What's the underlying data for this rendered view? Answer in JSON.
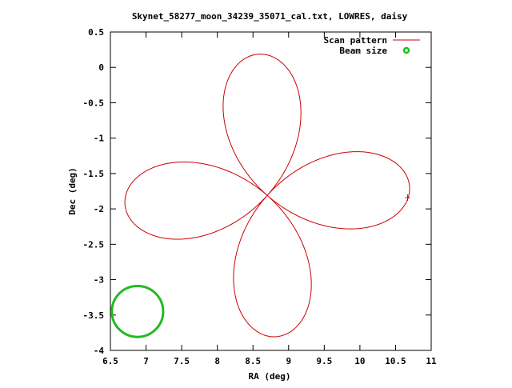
{
  "chart_data": {
    "type": "line",
    "title": "Skynet_58277_moon_34239_35071_cal.txt, LOWRES, daisy",
    "xlabel": "RA (deg)",
    "ylabel": "Dec (deg)",
    "xlim": [
      6.5,
      11
    ],
    "ylim": [
      -4,
      0.5
    ],
    "xticks": [
      "6.5",
      "7",
      "7.5",
      "8",
      "8.5",
      "9",
      "9.5",
      "10",
      "10.5",
      "11"
    ],
    "yticks": [
      "0.5",
      "0",
      "-0.5",
      "-1",
      "-1.5",
      "-2",
      "-2.5",
      "-3",
      "-3.5",
      "-4"
    ],
    "grid": false,
    "legend_position": "top-right",
    "series": [
      {
        "name": "Scan pattern",
        "color": "#cc0000",
        "style": "line",
        "shape": "daisy (4 petals)",
        "center": [
          8.7,
          -1.81
        ],
        "petal_extent_deg": 2.0,
        "path_start": [
          10.67,
          -1.84
        ],
        "path_extremes": {
          "ra_min": 6.67,
          "ra_max": 10.73,
          "dec_min": -3.82,
          "dec_max": 0.18
        }
      },
      {
        "name": "Beam size",
        "color": "#22bb22",
        "style": "circle",
        "center": [
          6.88,
          -3.45
        ],
        "diameter_deg": 0.72
      }
    ]
  }
}
